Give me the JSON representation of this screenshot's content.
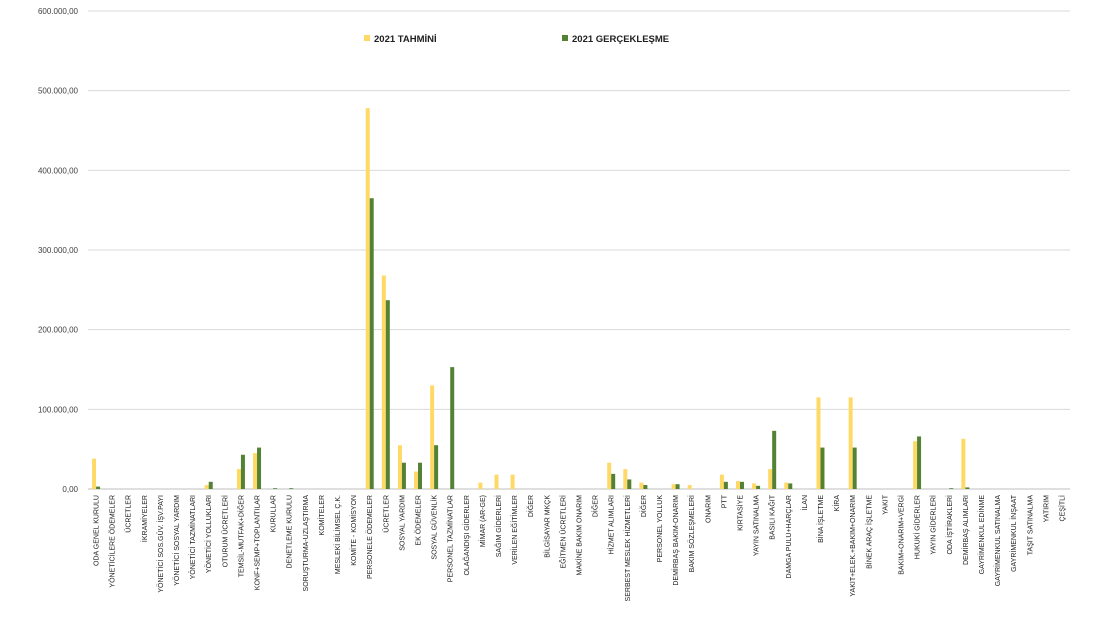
{
  "chart_data": {
    "type": "bar",
    "title": "",
    "xlabel": "",
    "ylabel": "",
    "ylim": [
      0,
      600000
    ],
    "yticks": [
      0,
      100000,
      200000,
      300000,
      400000,
      500000,
      600000
    ],
    "ytick_labels": [
      "0,00",
      "100.000,00",
      "200.000,00",
      "300.000,00",
      "400.000,00",
      "500.000,00",
      "600.000,00"
    ],
    "grid": true,
    "legend_position": "top-center",
    "categories": [
      "ODA GENEL KURULU",
      "YÖNETİCİLERE ÖDEMELER",
      "ÜCRETLER",
      "İKRAMİYELER",
      "YÖNETİCİ SOS.GÜV. İŞV.PAYI",
      "YÖNETİCİ SOSYAL YARDIM",
      "YÖNETİCİ TAZMİNATLARI",
      "YÖNETİCİ YOLLUKLARI",
      "OTURUM ÜCRETLERİ",
      "TEMSİL-MUTFAK+DİĞER",
      "KONF+SEMP+TOPLANTILAR",
      "KURULLAR",
      "DENETLEME KURULU",
      "SORUŞTURMA-UZLAŞTIRMA",
      "KOMİTELER",
      "MESLEKİ BİLİMSEL Ç.K.",
      "KOMİTE - KOMİSYON",
      "PERSONELE ÖDEMELER",
      "ÜCRETLER",
      "SOSYAL YARDIM",
      "EK ÖDEMELER",
      "SOSYAL GÜVENLİK",
      "PERSONEL TAZMİNATLAR",
      "OLAĞANDIŞI GİDERLER",
      "MİMAR (AR-GE)",
      "SAĞIM GİDERLERİ",
      "VERİLEN EĞİTİMLER",
      "DİĞER",
      "BİLGİSAYAR MKÇK",
      "EĞİTMEN ÜCRETLERİ",
      "MAKİNE BAKIM ONARIM",
      "DİĞER",
      "HİZMET ALIMLARI",
      "SERBEST MESLEK HİZMETLERİ",
      "DİĞER",
      "PERSONEL YOLLUK",
      "DEMİRBAŞ BAKIM-ONARIM",
      "BAKIM SÖZLEŞMELERİ",
      "ONARIM",
      "PTT",
      "KIRTASİYE",
      "YAYIN SATINALMA",
      "BASILI KAĞIT",
      "DAMGA PULU+HARÇLAR",
      "İLAN",
      "BİNA İŞLETME",
      "KİRA",
      "YAKIT+ELEK.+BAKIM+ONARIM",
      "BİNEK ARAÇ İŞLETME",
      "YAKIT",
      "BAKIM+ONARIM+VERGİ",
      "HUKUKİ GİDERLER",
      "YAYIN GİDERLERİ",
      "ODA İŞTİRAKLERİ",
      "DEMİRBAŞ ALIMLARI",
      "GAYRİMENKUL EDİNME",
      "GAYRİMENKUL SATINALMA",
      "GAYRİMENKUL İNŞAAT",
      "TAŞIT SATINALMA",
      "YATIRIM",
      "ÇEŞİTLİ"
    ],
    "series": [
      {
        "name": "2021 TAHMİNİ",
        "color": "#ffd966",
        "values": [
          38000,
          0,
          0,
          0,
          0,
          0,
          0,
          5000,
          0,
          25000,
          45000,
          0,
          0,
          0,
          0,
          0,
          0,
          478000,
          268000,
          55000,
          22000,
          130000,
          0,
          0,
          8000,
          18000,
          18000,
          0,
          0,
          0,
          0,
          0,
          33000,
          25000,
          8000,
          0,
          6000,
          5000,
          0,
          18000,
          10000,
          7000,
          25000,
          8000,
          0,
          115000,
          0,
          115000,
          0,
          0,
          0,
          60000,
          0,
          0,
          63000,
          0,
          0,
          0,
          0,
          0,
          0
        ]
      },
      {
        "name": "2021 GERÇEKLEŞME",
        "color": "#548235",
        "values": [
          3000,
          0,
          0,
          0,
          0,
          0,
          0,
          9000,
          0,
          43000,
          52000,
          1000,
          1000,
          0,
          0,
          0,
          0,
          365000,
          237000,
          33000,
          33000,
          55000,
          153000,
          0,
          0,
          0,
          0,
          0,
          0,
          0,
          0,
          0,
          19000,
          12000,
          5000,
          0,
          6000,
          0,
          0,
          9000,
          9000,
          4000,
          73000,
          7000,
          0,
          52000,
          0,
          52000,
          0,
          0,
          0,
          66000,
          0,
          1000,
          2000,
          0,
          0,
          0,
          0,
          0,
          0
        ]
      }
    ]
  }
}
